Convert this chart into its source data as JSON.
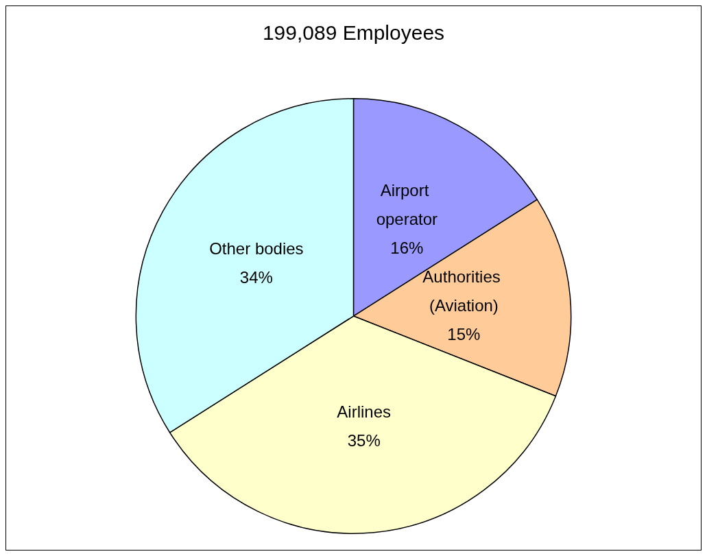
{
  "chart_data": {
    "type": "pie",
    "title": "199,089 Employees",
    "categories": [
      "Airport operator",
      "Authorities (Aviation)",
      "Airlines",
      "Other bodies"
    ],
    "values": [
      16,
      15,
      35,
      34
    ],
    "value_labels": [
      "16%",
      "15%",
      "35%",
      "34%"
    ],
    "colors": [
      "#9999ff",
      "#ffcc99",
      "#ffffcc",
      "#ccffff"
    ]
  }
}
